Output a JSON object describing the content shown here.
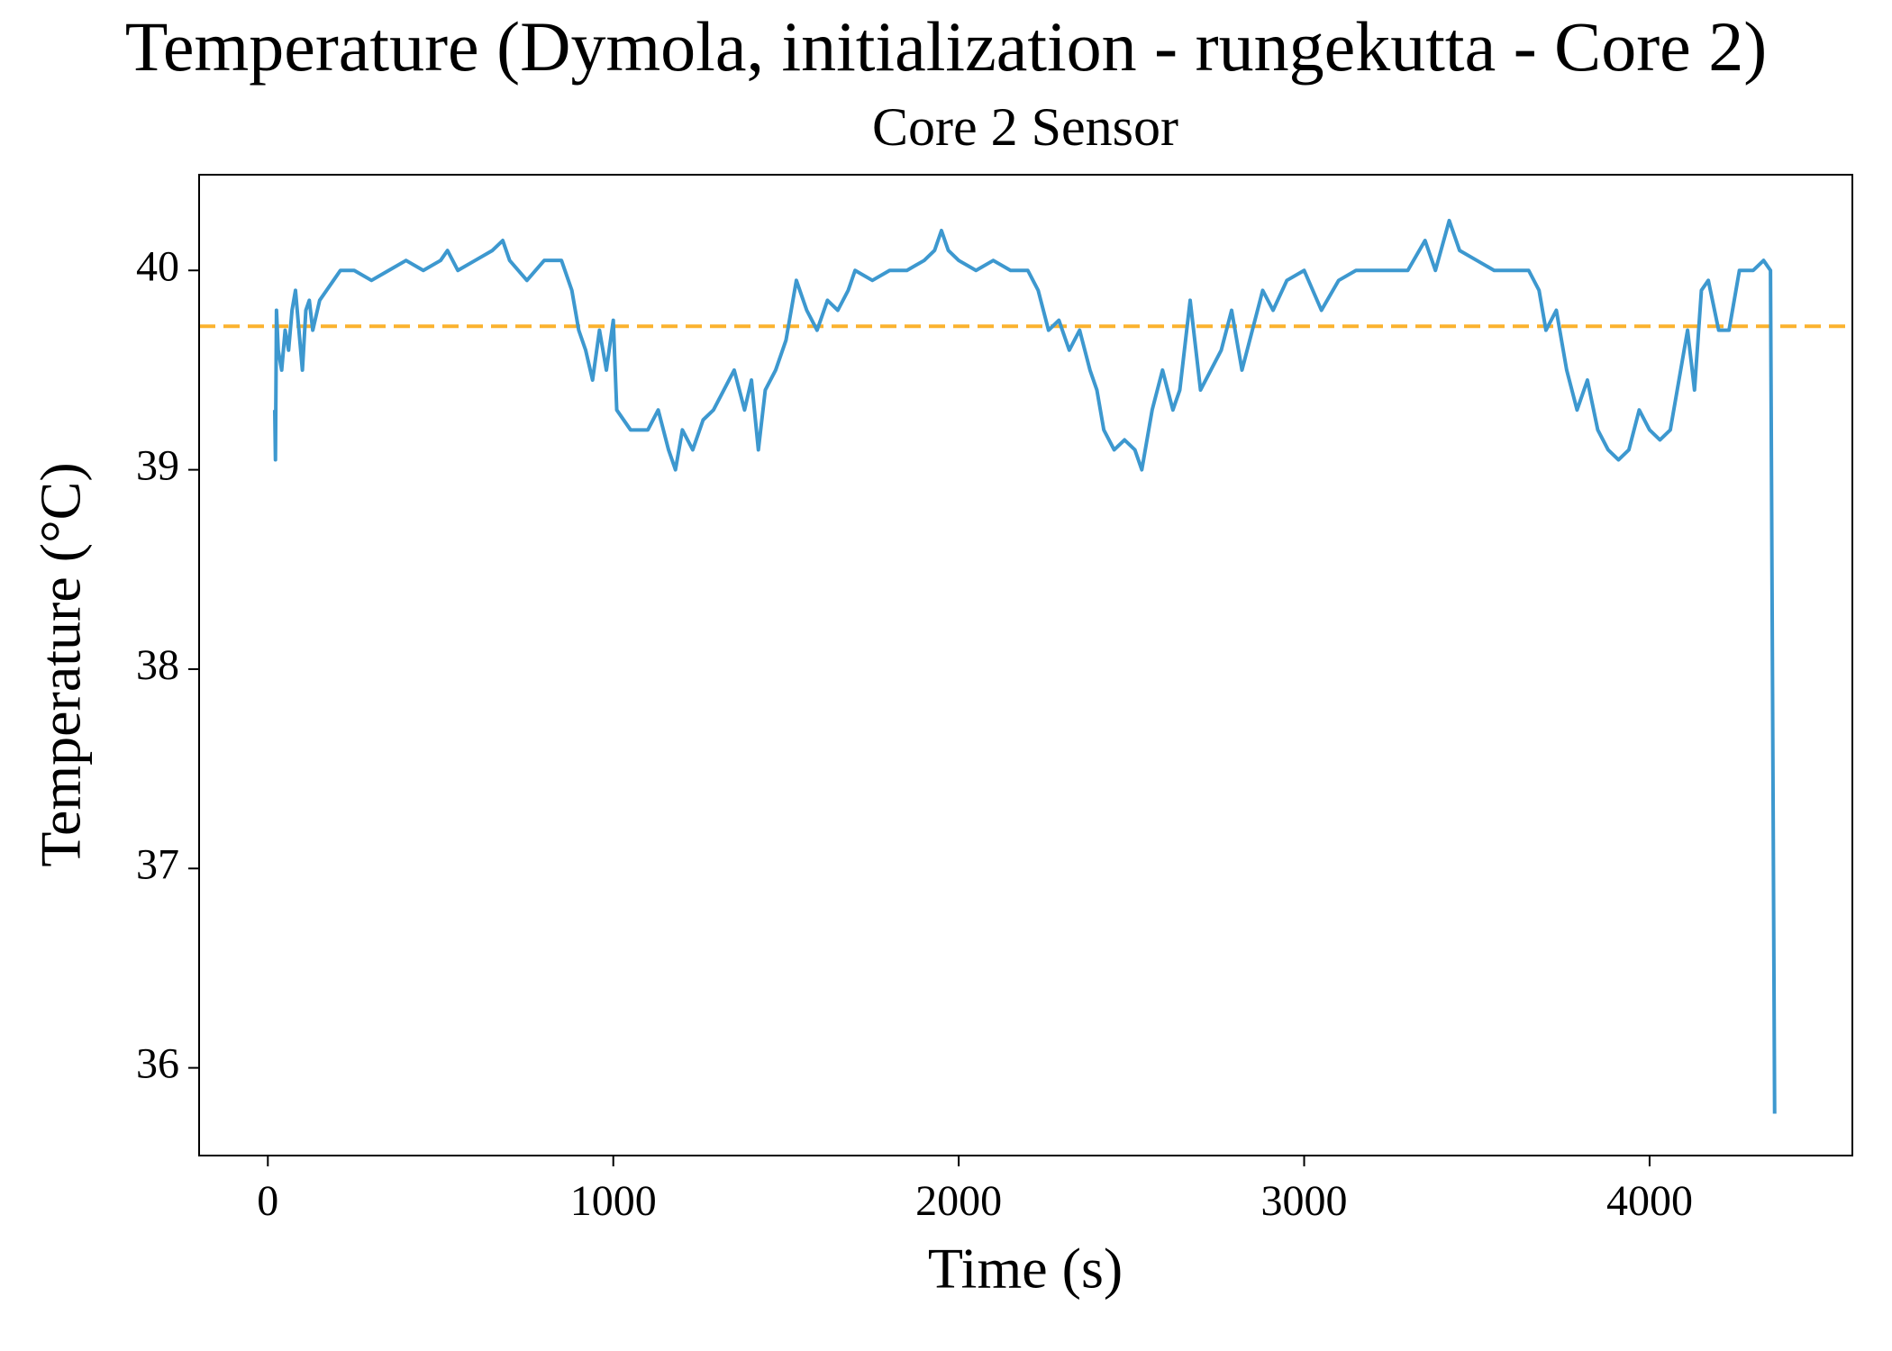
{
  "chart_data": {
    "type": "line",
    "title": "Temperature (Dymola, initialization - rungekutta - Core 2)",
    "subtitle": "Core 2 Sensor",
    "x_label": "Time (s)",
    "y_label": "Temperature (°C)",
    "xlim": [
      -199,
      4587
    ],
    "ylim": [
      35.56,
      40.48
    ],
    "xticks": [
      0,
      1000,
      2000,
      3000,
      4000
    ],
    "yticks": [
      36,
      37,
      38,
      39,
      40
    ],
    "grid": false,
    "reference_line": {
      "value": 39.72,
      "color": "#fbb22e",
      "style": "dashed"
    },
    "x": [
      20,
      22,
      25,
      30,
      40,
      50,
      60,
      70,
      80,
      90,
      100,
      110,
      120,
      130,
      150,
      170,
      190,
      210,
      250,
      300,
      350,
      400,
      450,
      500,
      520,
      550,
      600,
      650,
      680,
      700,
      750,
      800,
      850,
      880,
      900,
      920,
      940,
      960,
      980,
      1000,
      1010,
      1050,
      1100,
      1130,
      1160,
      1180,
      1200,
      1230,
      1260,
      1290,
      1320,
      1350,
      1380,
      1400,
      1420,
      1440,
      1470,
      1500,
      1530,
      1560,
      1590,
      1620,
      1650,
      1680,
      1700,
      1750,
      1800,
      1850,
      1900,
      1930,
      1950,
      1970,
      2000,
      2050,
      2100,
      2150,
      2200,
      2230,
      2260,
      2290,
      2320,
      2350,
      2380,
      2400,
      2420,
      2450,
      2480,
      2510,
      2530,
      2560,
      2590,
      2620,
      2640,
      2670,
      2700,
      2730,
      2760,
      2790,
      2820,
      2850,
      2880,
      2910,
      2950,
      3000,
      3050,
      3100,
      3150,
      3200,
      3250,
      3300,
      3350,
      3380,
      3420,
      3450,
      3500,
      3550,
      3600,
      3650,
      3680,
      3700,
      3730,
      3760,
      3790,
      3820,
      3850,
      3880,
      3910,
      3940,
      3970,
      4000,
      4030,
      4060,
      4090,
      4110,
      4130,
      4150,
      4170,
      4200,
      4230,
      4260,
      4300,
      4330,
      4350,
      4362
    ],
    "series": [
      {
        "name": "Core 2 Sensor",
        "color": "#3d98cf",
        "values": [
          39.3,
          39.05,
          39.8,
          39.6,
          39.5,
          39.7,
          39.6,
          39.8,
          39.9,
          39.7,
          39.5,
          39.8,
          39.85,
          39.7,
          39.85,
          39.9,
          39.95,
          40.0,
          40.0,
          39.95,
          40.0,
          40.05,
          40.0,
          40.05,
          40.1,
          40.0,
          40.05,
          40.1,
          40.15,
          40.05,
          39.95,
          40.05,
          40.05,
          39.9,
          39.7,
          39.6,
          39.45,
          39.7,
          39.5,
          39.75,
          39.3,
          39.2,
          39.2,
          39.3,
          39.1,
          39.0,
          39.2,
          39.1,
          39.25,
          39.3,
          39.4,
          39.5,
          39.3,
          39.45,
          39.1,
          39.4,
          39.5,
          39.65,
          39.95,
          39.8,
          39.7,
          39.85,
          39.8,
          39.9,
          40.0,
          39.95,
          40.0,
          40.0,
          40.05,
          40.1,
          40.2,
          40.1,
          40.05,
          40.0,
          40.05,
          40.0,
          40.0,
          39.9,
          39.7,
          39.75,
          39.6,
          39.7,
          39.5,
          39.4,
          39.2,
          39.1,
          39.15,
          39.1,
          39.0,
          39.3,
          39.5,
          39.3,
          39.4,
          39.85,
          39.4,
          39.5,
          39.6,
          39.8,
          39.5,
          39.7,
          39.9,
          39.8,
          39.95,
          40.0,
          39.8,
          39.95,
          40.0,
          40.0,
          40.0,
          40.0,
          40.15,
          40.0,
          40.25,
          40.1,
          40.05,
          40.0,
          40.0,
          40.0,
          39.9,
          39.7,
          39.8,
          39.5,
          39.3,
          39.45,
          39.2,
          39.1,
          39.05,
          39.1,
          39.3,
          39.2,
          39.15,
          39.2,
          39.5,
          39.7,
          39.4,
          39.9,
          39.95,
          39.7,
          39.7,
          40.0,
          40.0,
          40.05,
          40.0,
          35.77
        ]
      }
    ]
  }
}
